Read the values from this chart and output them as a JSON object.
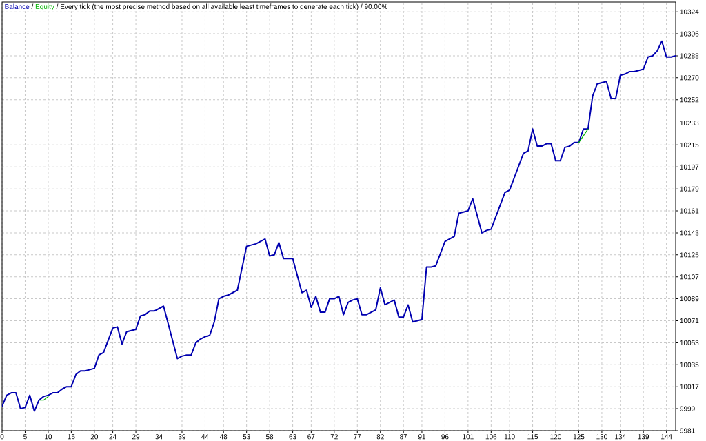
{
  "chart_data": {
    "type": "line",
    "title": "Every tick (the most precise method based on all available least timeframes to generate each tick) / 90.00%",
    "annotations": [
      "/",
      "/"
    ],
    "series": [
      {
        "name": "Balance",
        "color": "#0000b0",
        "x": [
          0,
          1,
          2,
          3,
          4,
          5,
          6,
          7,
          8,
          9,
          10,
          11,
          12,
          13,
          14,
          15,
          16,
          17,
          18,
          19,
          20,
          21,
          22,
          23,
          24,
          25,
          26,
          27,
          28,
          29,
          30,
          31,
          32,
          33,
          34,
          35,
          38,
          39,
          40,
          41,
          42,
          43,
          44,
          45,
          46,
          47,
          48,
          49,
          50,
          51,
          53,
          54,
          55,
          56,
          57,
          58,
          59,
          60,
          61,
          63,
          65,
          66,
          67,
          68,
          69,
          70,
          71,
          72,
          73,
          74,
          75,
          76,
          77,
          78,
          79,
          80,
          81,
          82,
          83,
          84,
          85,
          86,
          87,
          88,
          89,
          90,
          91,
          92,
          93,
          94,
          95,
          96,
          97,
          98,
          99,
          100,
          101,
          102,
          104,
          105,
          106,
          109,
          110,
          112,
          113,
          114,
          115,
          116,
          117,
          118,
          119,
          120,
          121,
          122,
          123,
          124,
          125,
          126,
          127,
          128,
          129,
          130,
          131,
          132,
          133,
          134,
          135,
          136,
          137,
          138,
          139,
          140,
          141,
          142,
          143,
          144,
          145,
          146
        ],
        "values": [
          10001,
          10010,
          10012,
          10012,
          9999,
          10000,
          10010,
          9997,
          10006,
          10009,
          10010,
          10012,
          10012,
          10015,
          10017,
          10017,
          10027,
          10030,
          10030,
          10031,
          10032,
          10043,
          10045,
          10055,
          10065,
          10066,
          10052,
          10062,
          10063,
          10064,
          10075,
          10076,
          10079,
          10079,
          10081,
          10083,
          10040,
          10042,
          10043,
          10043,
          10053,
          10056,
          10058,
          10059,
          10070,
          10089,
          10091,
          10092,
          10094,
          10096,
          10132,
          10133,
          10134,
          10136,
          10138,
          10124,
          10125,
          10135,
          10122,
          10122,
          10094,
          10096,
          10082,
          10091,
          10078,
          10078,
          10089,
          10089,
          10091,
          10076,
          10086,
          10088,
          10089,
          10076,
          10076,
          10078,
          10080,
          10098,
          10084,
          10086,
          10088,
          10074,
          10074,
          10084,
          10070,
          10071,
          10072,
          10115,
          10115,
          10116,
          10126,
          10136,
          10138,
          10140,
          10159,
          10160,
          10161,
          10171,
          10143,
          10145,
          10146,
          10176,
          10178,
          10198,
          10208,
          10210,
          10228,
          10214,
          10214,
          10216,
          10216,
          10202,
          10202,
          10213,
          10214,
          10217,
          10217,
          10228,
          10228,
          10255,
          10265,
          10266,
          10267,
          10253,
          10253,
          10272,
          10273,
          10275,
          10275,
          10276,
          10277,
          10287,
          10288,
          10292,
          10300,
          10287,
          10287,
          10288
        ]
      },
      {
        "name": "Equity",
        "color": "#00b400",
        "x": [
          8,
          9,
          10,
          60,
          125,
          127
        ],
        "values": [
          10006,
          10006,
          10009,
          null,
          10217,
          10228
        ]
      }
    ],
    "xlim": [
      0,
      146
    ],
    "ylim": [
      9981,
      10332
    ],
    "xticks": [
      0,
      5,
      10,
      15,
      20,
      24,
      29,
      34,
      39,
      44,
      48,
      53,
      58,
      63,
      67,
      72,
      77,
      82,
      87,
      91,
      96,
      101,
      106,
      110,
      115,
      120,
      125,
      130,
      134,
      139,
      144
    ],
    "yticks": [
      9981,
      9999,
      10017,
      10035,
      10053,
      10071,
      10089,
      10107,
      10125,
      10143,
      10161,
      10179,
      10197,
      10215,
      10233,
      10252,
      10270,
      10288,
      10306,
      10324
    ],
    "grid": true,
    "legend": "top left"
  }
}
